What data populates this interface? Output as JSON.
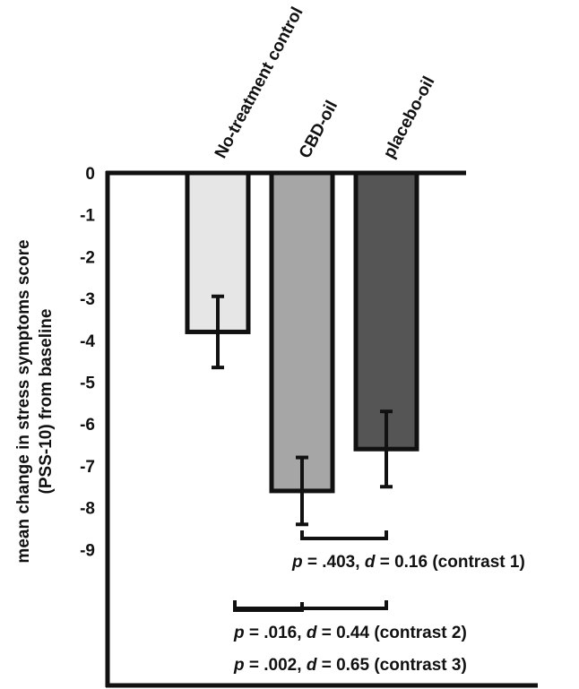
{
  "chart_data": {
    "type": "bar",
    "categories": [
      "No-treatment control",
      "CBD-oil",
      "placebo-oil"
    ],
    "values": [
      -3.8,
      -7.6,
      -6.6
    ],
    "error": [
      0.85,
      0.8,
      0.9
    ],
    "colors": [
      "#e6e6e6",
      "#a6a6a6",
      "#555555"
    ],
    "ylabel": [
      "mean change in stress symptoms score",
      "(PSS-10) from baseline"
    ],
    "ylim": [
      -9,
      0
    ],
    "ticks": [
      "0",
      "-1",
      "-2",
      "-3",
      "-4",
      "-5",
      "-6",
      "-7",
      "-8",
      "-9"
    ],
    "contrasts": [
      {
        "p": ".403",
        "d": "0.16",
        "label": "(contrast 1)",
        "from": 1,
        "to": 2
      },
      {
        "p": ".016",
        "d": "0.44",
        "label": "(contrast 2)",
        "from": 0,
        "to": 2
      },
      {
        "p": ".002",
        "d": "0.65",
        "label": "(contrast 3)",
        "from": 0,
        "to": 1
      }
    ]
  }
}
